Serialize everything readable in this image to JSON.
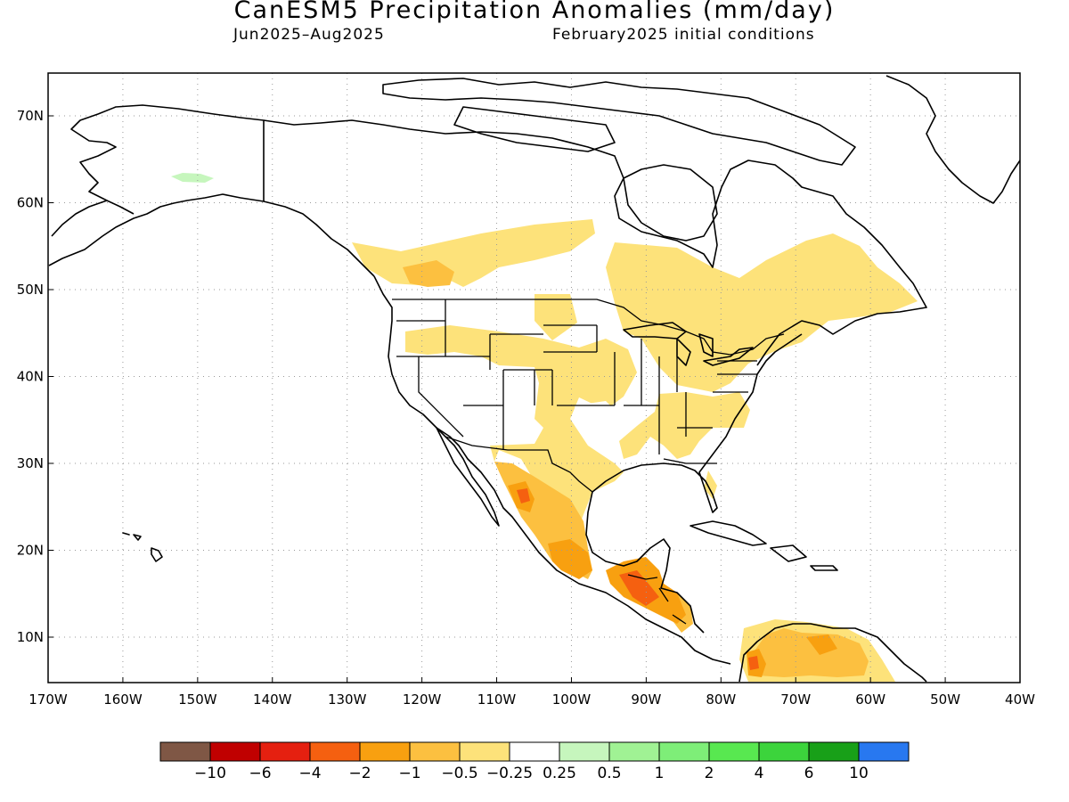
{
  "title": "CanESM5 Precipitation Anomalies (mm/day)",
  "period": "Jun2025–Aug2025",
  "init": "February2025 initial conditions",
  "lat_labels": [
    {
      "text": "70N",
      "lat": 70
    },
    {
      "text": "60N",
      "lat": 60
    },
    {
      "text": "50N",
      "lat": 50
    },
    {
      "text": "40N",
      "lat": 40
    },
    {
      "text": "30N",
      "lat": 30
    },
    {
      "text": "20N",
      "lat": 20
    },
    {
      "text": "10N",
      "lat": 10
    }
  ],
  "lon_labels": [
    {
      "text": "170W",
      "lon": -170
    },
    {
      "text": "160W",
      "lon": -160
    },
    {
      "text": "150W",
      "lon": -150
    },
    {
      "text": "140W",
      "lon": -140
    },
    {
      "text": "130W",
      "lon": -130
    },
    {
      "text": "120W",
      "lon": -120
    },
    {
      "text": "110W",
      "lon": -110
    },
    {
      "text": "100W",
      "lon": -100
    },
    {
      "text": "90W",
      "lon": -90
    },
    {
      "text": "80W",
      "lon": -80
    },
    {
      "text": "70W",
      "lon": -70
    },
    {
      "text": "60W",
      "lon": -60
    },
    {
      "text": "50W",
      "lon": -50
    },
    {
      "text": "40W",
      "lon": -40
    }
  ],
  "colorbar": {
    "colors": [
      "#7f5745",
      "#c00000",
      "#e52010",
      "#f56010",
      "#f8a010",
      "#fcc040",
      "#fde27a",
      "#ffffff",
      "#c6f6bd",
      "#a0f294",
      "#7eee78",
      "#58e850",
      "#3cd43c",
      "#18a018",
      "#2878f0"
    ],
    "labels": [
      "−10",
      "−6",
      "−4",
      "−2",
      "−1",
      "−0.5",
      "−0.25",
      "0.25",
      "0.5",
      "1",
      "2",
      "4",
      "6",
      "10"
    ]
  }
}
